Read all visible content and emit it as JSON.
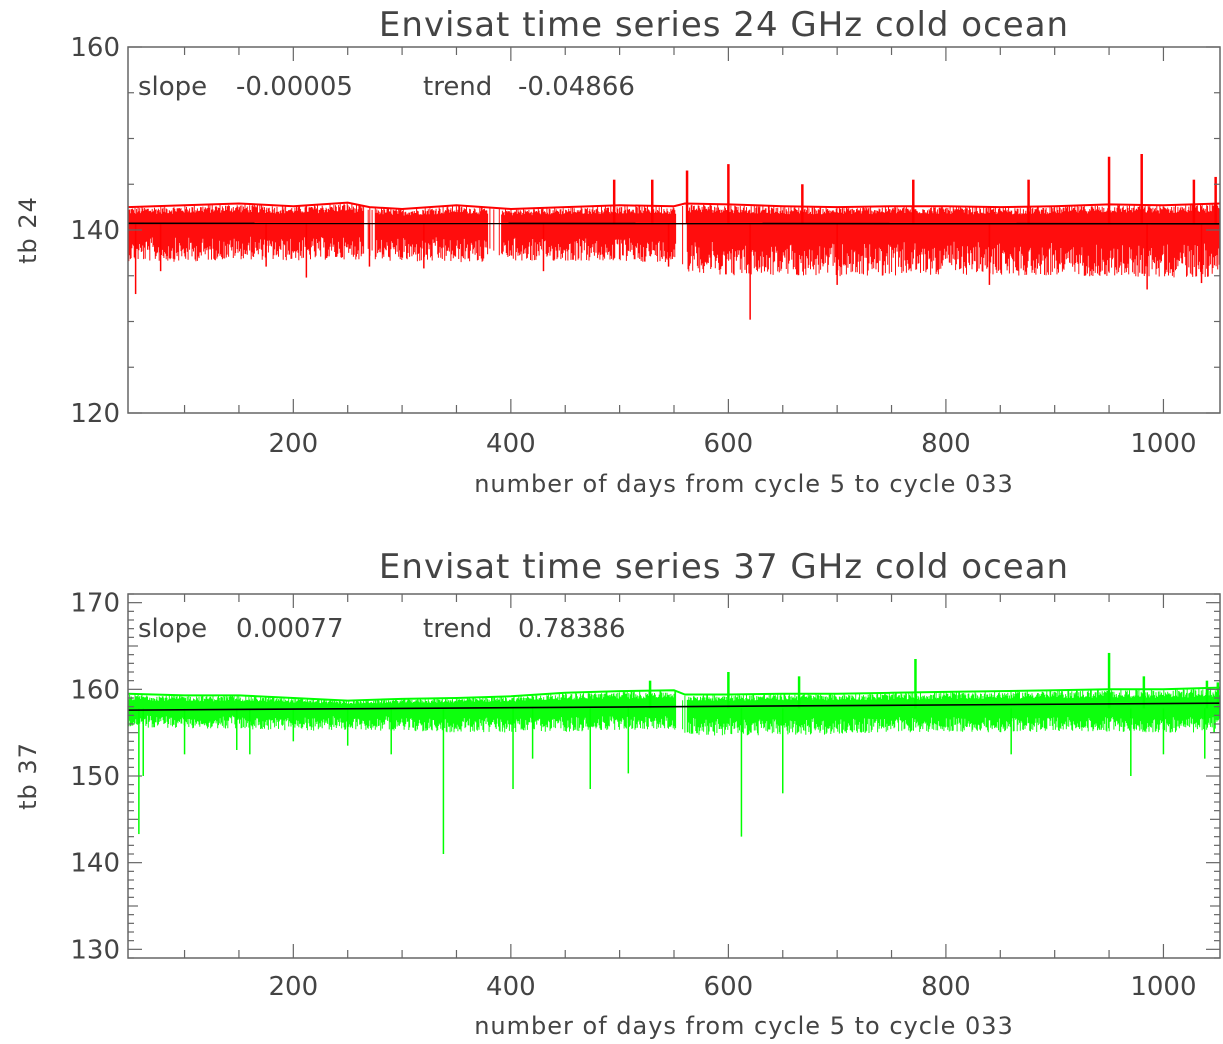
{
  "chart_data": [
    {
      "type": "line",
      "title": "Envisat     time series 24 GHz cold ocean",
      "xlabel": "number of days from cycle 5 to cycle 033",
      "ylabel": "tb 24",
      "xlim": [
        48,
        1052
      ],
      "ylim": [
        120,
        160
      ],
      "x_ticks": [
        200,
        400,
        600,
        800,
        1000
      ],
      "y_ticks": [
        120,
        140,
        160
      ],
      "annotation": {
        "slope_label": "slope",
        "slope": "-0.00005",
        "trend_label": "trend",
        "trend": "-0.04866"
      },
      "series": [
        {
          "color": "#ff0000",
          "baseline": 140.7,
          "upper": [
            [
              48,
              142.5
            ],
            [
              100,
              142.7
            ],
            [
              150,
              142.9
            ],
            [
              200,
              142.6
            ],
            [
              250,
              143.0
            ],
            [
              270,
              142.5
            ],
            [
              300,
              142.3
            ],
            [
              350,
              142.7
            ],
            [
              400,
              142.3
            ],
            [
              450,
              142.5
            ],
            [
              500,
              142.7
            ],
            [
              550,
              142.6
            ],
            [
              560,
              142.9
            ],
            [
              600,
              142.8
            ],
            [
              650,
              142.6
            ],
            [
              700,
              142.5
            ],
            [
              750,
              142.6
            ],
            [
              800,
              142.6
            ],
            [
              850,
              142.5
            ],
            [
              900,
              142.6
            ],
            [
              950,
              142.8
            ],
            [
              1000,
              142.7
            ],
            [
              1052,
              142.9
            ]
          ],
          "lower": [
            [
              48,
              136.6
            ],
            [
              100,
              136.5
            ],
            [
              150,
              136.8
            ],
            [
              200,
              136.6
            ],
            [
              250,
              136.8
            ],
            [
              300,
              136.5
            ],
            [
              350,
              136.4
            ],
            [
              400,
              136.5
            ],
            [
              450,
              136.6
            ],
            [
              500,
              136.5
            ],
            [
              550,
              136.5
            ],
            [
              560,
              135.5
            ],
            [
              600,
              135.0
            ],
            [
              650,
              135.0
            ],
            [
              700,
              134.9
            ],
            [
              750,
              135.0
            ],
            [
              800,
              135.1
            ],
            [
              850,
              135.0
            ],
            [
              900,
              135.0
            ],
            [
              950,
              134.9
            ],
            [
              1000,
              134.8
            ],
            [
              1052,
              134.8
            ]
          ],
          "gaps": [
            [
              265,
              275
            ],
            [
              378,
              392
            ],
            [
              552,
              562
            ]
          ],
          "spikes_down": [
            [
              55,
              133.0
            ],
            [
              78,
              135.5
            ],
            [
              175,
              136.0
            ],
            [
              212,
              134.8
            ],
            [
              270,
              136.0
            ],
            [
              320,
              135.8
            ],
            [
              430,
              135.5
            ],
            [
              545,
              136.0
            ],
            [
              620,
              130.2
            ],
            [
              700,
              134.0
            ],
            [
              840,
              134.0
            ],
            [
              985,
              133.5
            ],
            [
              1035,
              134.2
            ]
          ],
          "spikes_up": [
            [
              495,
              145.5
            ],
            [
              530,
              145.5
            ],
            [
              562,
              146.5
            ],
            [
              600,
              147.2
            ],
            [
              668,
              145.0
            ],
            [
              770,
              145.5
            ],
            [
              876,
              145.5
            ],
            [
              1028,
              145.5
            ],
            [
              1110,
              146.0
            ]
          ],
          "spikes_up_extra": [
            [
              950,
              148.0
            ],
            [
              980,
              148.3
            ],
            [
              1048,
              145.8
            ]
          ],
          "trend_line": [
            [
              48,
              140.73
            ],
            [
              1052,
              140.68
            ]
          ]
        }
      ]
    },
    {
      "type": "line",
      "title": "Envisat     time series 37 GHz cold ocean",
      "xlabel": "number of days from cycle 5 to cycle 033",
      "ylabel": "tb 37",
      "xlim": [
        48,
        1052
      ],
      "ylim": [
        129,
        171
      ],
      "x_ticks": [
        200,
        400,
        600,
        800,
        1000
      ],
      "y_ticks": [
        130,
        140,
        150,
        160,
        170
      ],
      "annotation": {
        "slope_label": "slope",
        "slope": "0.00077",
        "trend_label": "trend",
        "trend": "0.78386"
      },
      "series": [
        {
          "color": "#00ff00",
          "baseline": 157.8,
          "upper": [
            [
              48,
              159.5
            ],
            [
              100,
              159.3
            ],
            [
              150,
              159.3
            ],
            [
              200,
              159.0
            ],
            [
              250,
              158.7
            ],
            [
              300,
              158.9
            ],
            [
              350,
              159.0
            ],
            [
              400,
              159.2
            ],
            [
              450,
              159.6
            ],
            [
              500,
              159.8
            ],
            [
              550,
              159.9
            ],
            [
              560,
              159.4
            ],
            [
              600,
              159.4
            ],
            [
              650,
              159.5
            ],
            [
              700,
              159.5
            ],
            [
              750,
              159.6
            ],
            [
              800,
              159.7
            ],
            [
              850,
              159.8
            ],
            [
              900,
              159.9
            ],
            [
              950,
              160.0
            ],
            [
              1000,
              160.0
            ],
            [
              1052,
              160.2
            ]
          ],
          "lower": [
            [
              48,
              155.6
            ],
            [
              100,
              155.5
            ],
            [
              150,
              155.4
            ],
            [
              200,
              155.2
            ],
            [
              250,
              155.3
            ],
            [
              300,
              155.2
            ],
            [
              350,
              155.0
            ],
            [
              400,
              155.0
            ],
            [
              450,
              155.1
            ],
            [
              500,
              155.3
            ],
            [
              550,
              155.4
            ],
            [
              560,
              154.8
            ],
            [
              600,
              154.6
            ],
            [
              650,
              154.7
            ],
            [
              700,
              154.8
            ],
            [
              750,
              155.0
            ],
            [
              800,
              155.1
            ],
            [
              850,
              155.0
            ],
            [
              900,
              155.1
            ],
            [
              950,
              155.1
            ],
            [
              1000,
              155.0
            ],
            [
              1052,
              155.0
            ]
          ],
          "gaps": [
            [
              552,
              562
            ]
          ],
          "spikes_down": [
            [
              58,
              143.3
            ],
            [
              62,
              150.0
            ],
            [
              100,
              152.5
            ],
            [
              148,
              153.0
            ],
            [
              160,
              152.5
            ],
            [
              200,
              154.0
            ],
            [
              250,
              153.5
            ],
            [
              290,
              152.5
            ],
            [
              338,
              141.0
            ],
            [
              402,
              148.5
            ],
            [
              420,
              152.0
            ],
            [
              473,
              148.5
            ],
            [
              508,
              150.3
            ],
            [
              612,
              143.0
            ],
            [
              650,
              148.0
            ],
            [
              860,
              152.5
            ],
            [
              970,
              150.0
            ],
            [
              1000,
              152.5
            ],
            [
              1038,
              152.0
            ]
          ],
          "spikes_up": [
            [
              528,
              161.0
            ],
            [
              600,
              162.0
            ],
            [
              665,
              161.5
            ],
            [
              772,
              163.5
            ],
            [
              950,
              164.2
            ],
            [
              982,
              161.5
            ],
            [
              1040,
              161.0
            ],
            [
              1050,
              160.8
            ]
          ],
          "trend_line": [
            [
              48,
              157.6
            ],
            [
              1052,
              158.4
            ]
          ]
        }
      ]
    }
  ]
}
